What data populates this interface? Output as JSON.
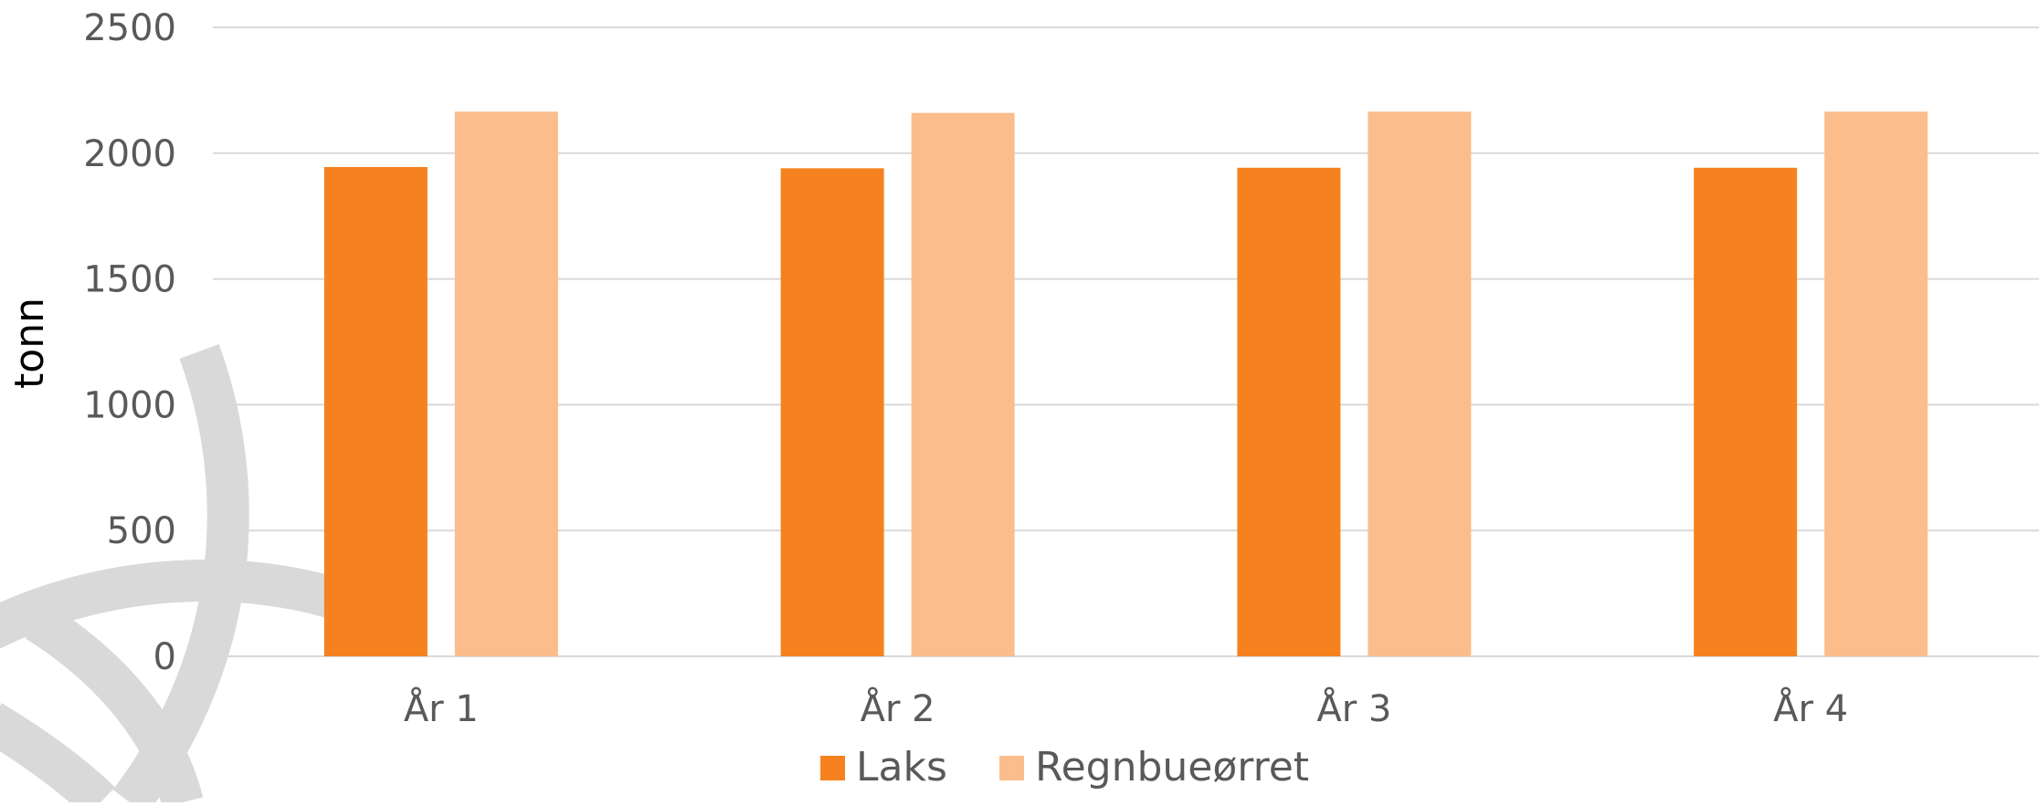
{
  "chart_data": {
    "type": "bar",
    "title": "",
    "xlabel": "",
    "ylabel": "tonn",
    "ylim": [
      0,
      2500
    ],
    "yticks": [
      0,
      500,
      1000,
      1500,
      2000,
      2500
    ],
    "categories": [
      "År 1",
      "År 2",
      "År 3",
      "År 4"
    ],
    "series": [
      {
        "name": "Laks",
        "values": [
          1945,
          1940,
          1942,
          1942
        ]
      },
      {
        "name": "Regnbueørret",
        "values": [
          2165,
          2160,
          2165,
          2165
        ]
      }
    ],
    "grid": true,
    "legend": "bottom"
  },
  "colors": {
    "Laks": "#f5821f",
    "Regnbueørret": "#fbbd8c",
    "grid": "#d9d9d9",
    "tick_text": "#595959",
    "axis_title": "#000000",
    "watermark": "#d9d9d9"
  }
}
